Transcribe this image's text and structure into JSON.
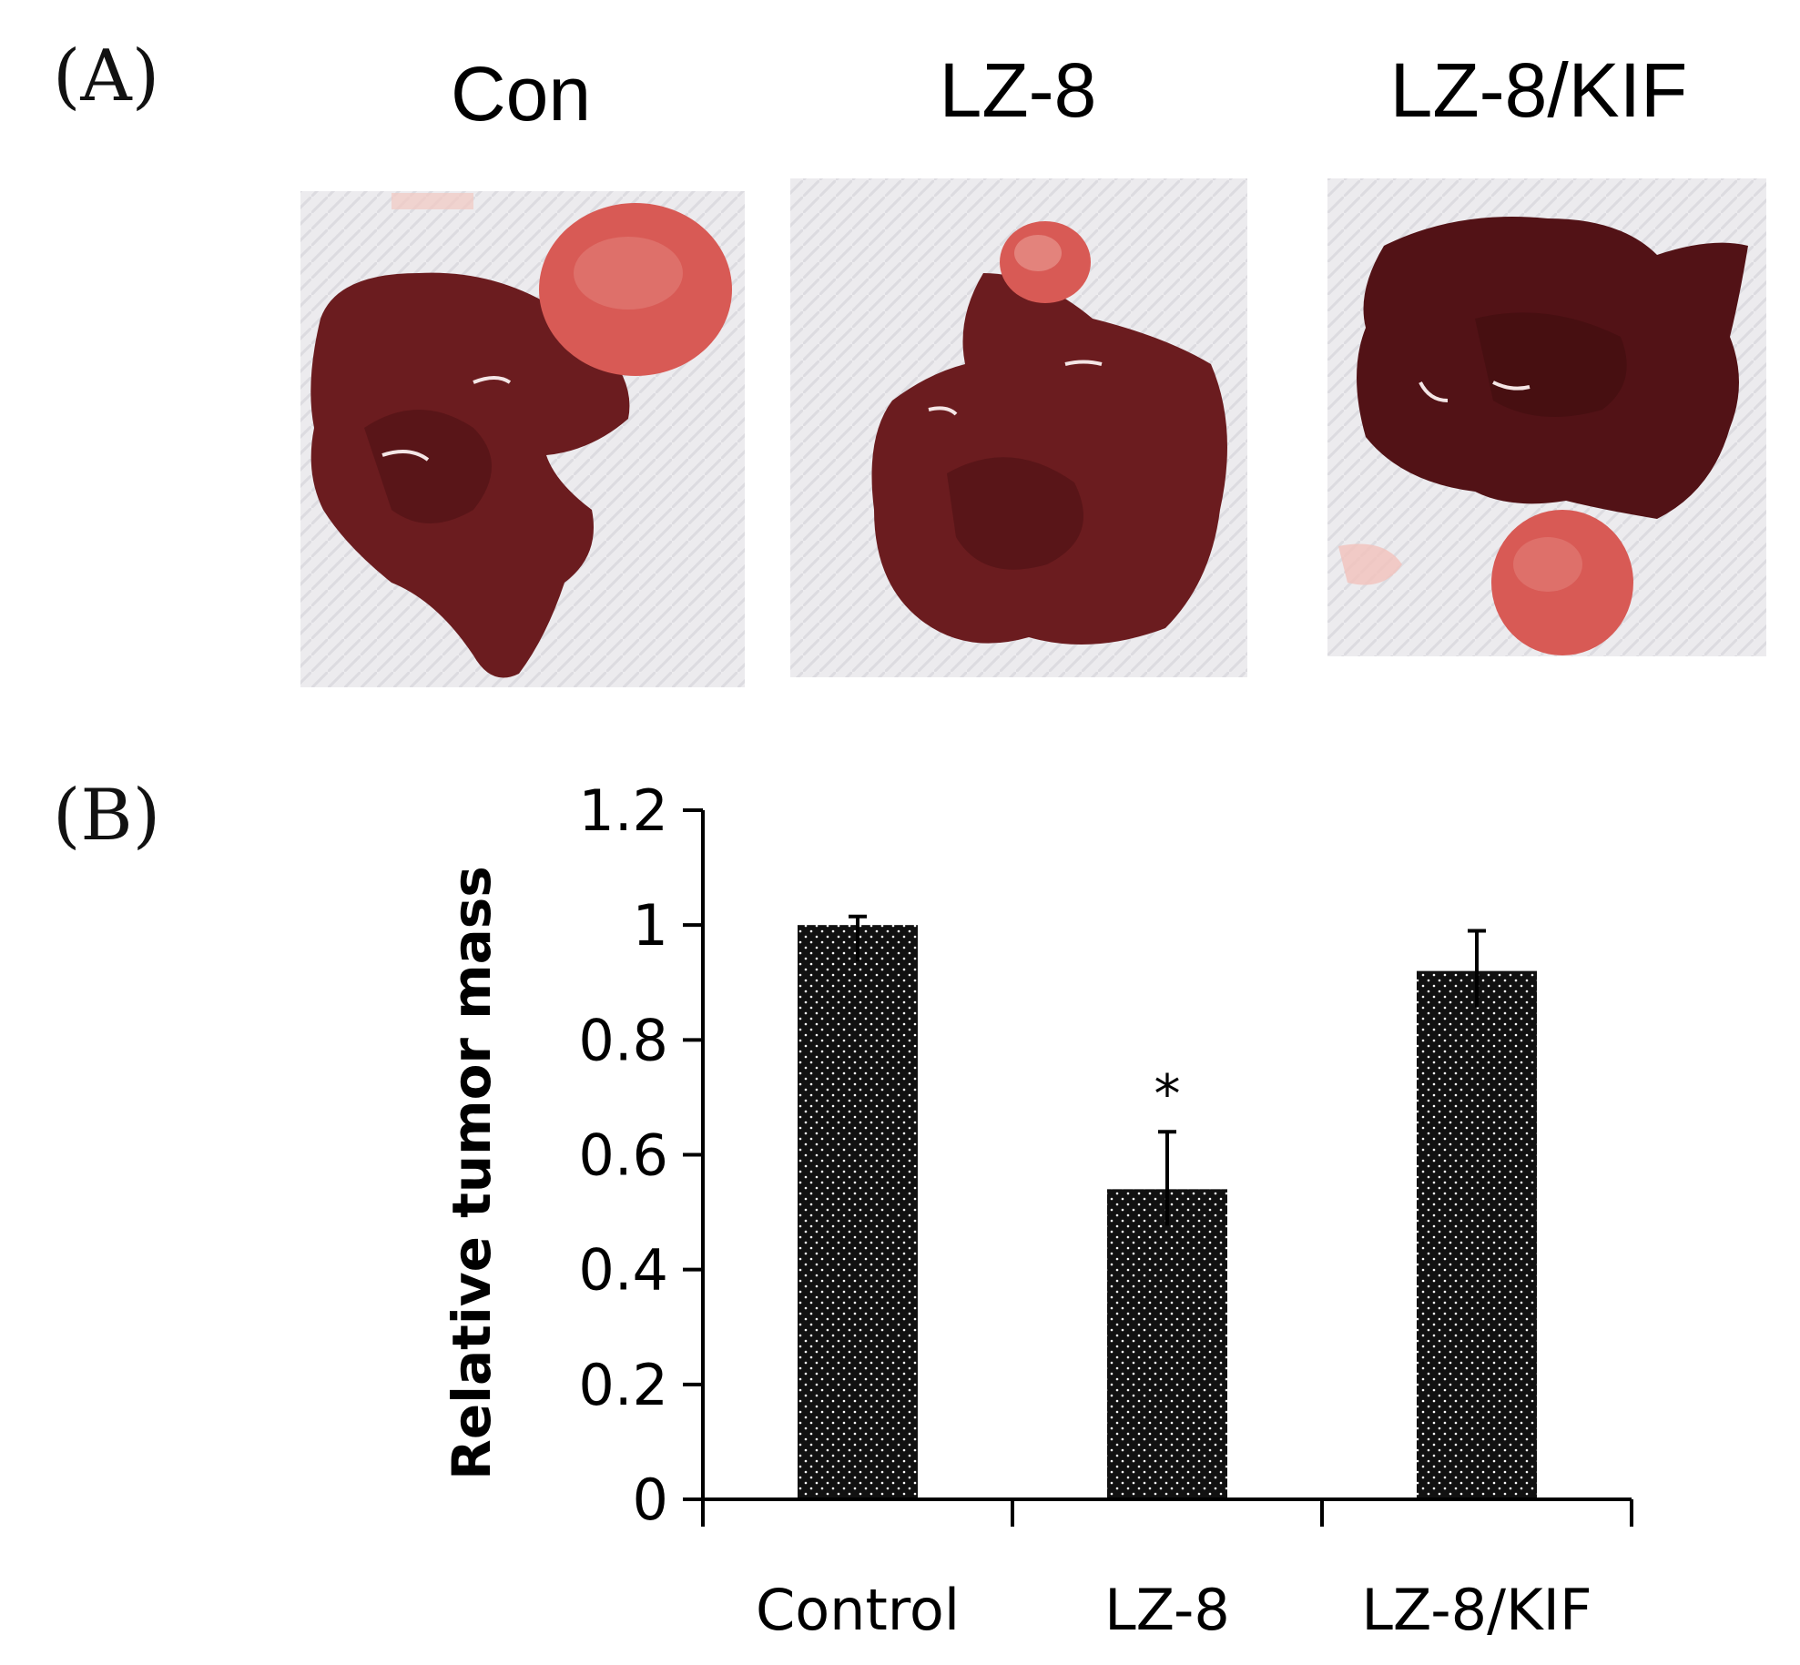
{
  "panel_a": {
    "label": "(A)",
    "photos": [
      {
        "title": "Con"
      },
      {
        "title": "LZ-8"
      },
      {
        "title": "LZ-8/KIF"
      }
    ]
  },
  "panel_b": {
    "label": "(B)"
  },
  "colors": {
    "bar_fill": "#111111",
    "bar_dot": "#ffffff",
    "liver": "#6b1c1f",
    "liver_dark": "#4a1013",
    "tumor": "#d85a55",
    "background_paper": "#ece9eb"
  },
  "chart_data": {
    "type": "bar",
    "categories": [
      "Control",
      "LZ-8",
      "LZ-8/KIF"
    ],
    "values": [
      1.0,
      0.54,
      0.92
    ],
    "errors": [
      0.015,
      0.1,
      0.07
    ],
    "significance": [
      "",
      "*",
      ""
    ],
    "title": "",
    "xlabel": "",
    "ylabel": "Relative tumor mass",
    "ylim": [
      0,
      1.2
    ],
    "yticks": [
      0,
      0.2,
      0.4,
      0.6,
      0.8,
      1,
      1.2
    ],
    "ytick_labels": [
      "0",
      "0.2",
      "0.4",
      "0.6",
      "0.8",
      "1",
      "1.2"
    ],
    "grid": false,
    "legend": "none"
  }
}
